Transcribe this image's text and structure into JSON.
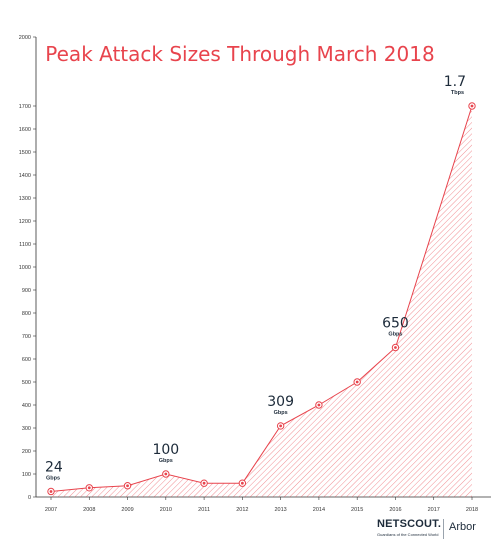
{
  "chart_data": {
    "type": "area",
    "title": "Peak Attack Sizes Through March 2018",
    "xlabel": "",
    "ylabel": "",
    "x": [
      "2007",
      "2008",
      "2009",
      "2010",
      "2011",
      "2012",
      "2013",
      "2014",
      "2015",
      "2016",
      "2017",
      "2018"
    ],
    "series": [
      {
        "values": [
          24,
          40,
          49,
          100,
          60,
          60,
          309,
          400,
          500,
          650,
          null,
          1700
        ]
      }
    ],
    "ylim": [
      0,
      2000
    ],
    "yticks": [
      0,
      100,
      200,
      300,
      400,
      500,
      600,
      700,
      800,
      900,
      1000,
      1100,
      1200,
      1300,
      1400,
      1500,
      1600,
      1700,
      2000
    ],
    "grid": false,
    "callouts": [
      {
        "x_index": 0,
        "big": "24",
        "unit": "Gbps"
      },
      {
        "x_index": 3,
        "big": "100",
        "unit": "Gbps"
      },
      {
        "x_index": 6,
        "big": "309",
        "unit": "Gbps"
      },
      {
        "x_index": 9,
        "big": "650",
        "unit": "Gbps"
      },
      {
        "x_index": 11,
        "big": "1.7",
        "unit": "Tbps"
      }
    ],
    "colors": {
      "line": "#e8444d",
      "hatch": "#e8444d",
      "title": "#e8444d",
      "axis": "#333333",
      "callout": "#1d2b3a"
    }
  },
  "logo": {
    "brand": "NETSCOUT.",
    "tagline": "Guardians of the Connected World",
    "product": "Arbor"
  }
}
